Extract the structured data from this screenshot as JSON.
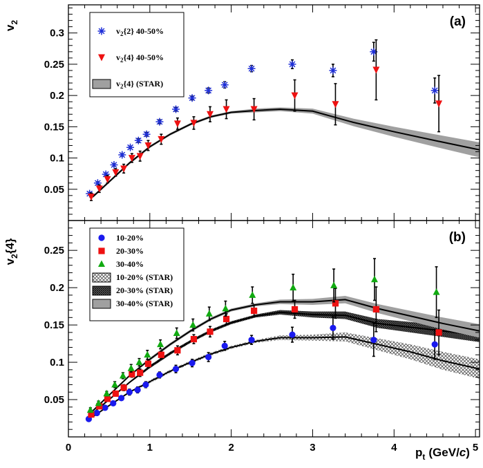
{
  "figure": {
    "xlabel": "p",
    "xlabel_sub": "t",
    "xlabel_unit": "(GeV/",
    "xlabel_unit_italic": "c",
    "xlabel_unit_close": ")"
  },
  "chart_data": [
    {
      "type": "scatter",
      "panel_label": "(a)",
      "ylabel": "v",
      "ylabel_sub": "2",
      "xlim": [
        0,
        5.05
      ],
      "ylim": [
        0.0,
        0.345
      ],
      "xticks": [
        "0",
        "1",
        "2",
        "3",
        "4",
        "5"
      ],
      "yticks": [
        "0.05",
        "0.1",
        "0.15",
        "0.2",
        "0.25",
        "0.3"
      ],
      "series": [
        {
          "name": "v2{2} 40-50%",
          "legend_main": "v",
          "legend_sub": "2",
          "legend_rest": "{2}  40-50%",
          "marker": "star",
          "color": "#1f2fd8",
          "points": [
            {
              "x": 0.26,
              "y": 0.043,
              "err": 0.002
            },
            {
              "x": 0.36,
              "y": 0.06,
              "err": 0.002
            },
            {
              "x": 0.46,
              "y": 0.074,
              "err": 0.002
            },
            {
              "x": 0.56,
              "y": 0.089,
              "err": 0.002
            },
            {
              "x": 0.66,
              "y": 0.105,
              "err": 0.002
            },
            {
              "x": 0.76,
              "y": 0.117,
              "err": 0.002
            },
            {
              "x": 0.86,
              "y": 0.128,
              "err": 0.003
            },
            {
              "x": 0.96,
              "y": 0.138,
              "err": 0.003
            },
            {
              "x": 1.12,
              "y": 0.158,
              "err": 0.003
            },
            {
              "x": 1.32,
              "y": 0.178,
              "err": 0.003
            },
            {
              "x": 1.52,
              "y": 0.196,
              "err": 0.003
            },
            {
              "x": 1.72,
              "y": 0.208,
              "err": 0.004
            },
            {
              "x": 1.92,
              "y": 0.217,
              "err": 0.005
            },
            {
              "x": 2.25,
              "y": 0.243,
              "err": 0.005
            },
            {
              "x": 2.75,
              "y": 0.25,
              "err": 0.007
            },
            {
              "x": 3.25,
              "y": 0.24,
              "err": 0.01
            },
            {
              "x": 3.75,
              "y": 0.27,
              "err": 0.015
            },
            {
              "x": 4.5,
              "y": 0.208,
              "err": 0.02
            }
          ]
        },
        {
          "name": "v2{4} 40-50%",
          "legend_main": "v",
          "legend_sub": "2",
          "legend_rest": "{4}  40-50%",
          "marker": "triangle-down",
          "color": "#ee1111",
          "points": [
            {
              "x": 0.28,
              "y": 0.038,
              "err": 0.006
            },
            {
              "x": 0.38,
              "y": 0.051,
              "err": 0.006
            },
            {
              "x": 0.48,
              "y": 0.066,
              "err": 0.006
            },
            {
              "x": 0.58,
              "y": 0.077,
              "err": 0.006
            },
            {
              "x": 0.68,
              "y": 0.083,
              "err": 0.007
            },
            {
              "x": 0.78,
              "y": 0.1,
              "err": 0.007
            },
            {
              "x": 0.88,
              "y": 0.103,
              "err": 0.008
            },
            {
              "x": 0.98,
              "y": 0.12,
              "err": 0.008
            },
            {
              "x": 1.14,
              "y": 0.13,
              "err": 0.008
            },
            {
              "x": 1.34,
              "y": 0.155,
              "err": 0.009
            },
            {
              "x": 1.54,
              "y": 0.156,
              "err": 0.01
            },
            {
              "x": 1.74,
              "y": 0.17,
              "err": 0.012
            },
            {
              "x": 1.94,
              "y": 0.178,
              "err": 0.015
            },
            {
              "x": 2.28,
              "y": 0.178,
              "err": 0.017
            },
            {
              "x": 2.78,
              "y": 0.2,
              "err": 0.025
            },
            {
              "x": 3.28,
              "y": 0.186,
              "err": 0.033
            },
            {
              "x": 3.78,
              "y": 0.241,
              "err": 0.048
            },
            {
              "x": 4.55,
              "y": 0.187,
              "err": 0.045
            }
          ]
        }
      ],
      "bands": [
        {
          "name": "v2{4} (STAR)",
          "legend_main": "v",
          "legend_sub": "2",
          "legend_rest": "{4} (STAR)",
          "pattern": "solid",
          "fill": "#a0a0a0",
          "points": [
            {
              "x": 0.3,
              "y": 0.038,
              "err": 0.002
            },
            {
              "x": 0.5,
              "y": 0.062,
              "err": 0.002
            },
            {
              "x": 0.75,
              "y": 0.092,
              "err": 0.002
            },
            {
              "x": 1.0,
              "y": 0.118,
              "err": 0.002
            },
            {
              "x": 1.25,
              "y": 0.138,
              "err": 0.002
            },
            {
              "x": 1.5,
              "y": 0.154,
              "err": 0.002
            },
            {
              "x": 1.75,
              "y": 0.166,
              "err": 0.002
            },
            {
              "x": 2.0,
              "y": 0.173,
              "err": 0.002
            },
            {
              "x": 2.3,
              "y": 0.176,
              "err": 0.003
            },
            {
              "x": 2.6,
              "y": 0.178,
              "err": 0.003
            },
            {
              "x": 3.0,
              "y": 0.175,
              "err": 0.004
            },
            {
              "x": 3.5,
              "y": 0.157,
              "err": 0.006
            },
            {
              "x": 4.0,
              "y": 0.142,
              "err": 0.008
            },
            {
              "x": 4.5,
              "y": 0.128,
              "err": 0.01
            },
            {
              "x": 5.05,
              "y": 0.113,
              "err": 0.012
            }
          ]
        }
      ]
    },
    {
      "type": "scatter",
      "panel_label": "(b)",
      "ylabel": "v",
      "ylabel_sub": "2",
      "ylabel_rest": "{4}",
      "xlim": [
        0,
        5.05
      ],
      "ylim": [
        0.0,
        0.29
      ],
      "xticks": [
        "0",
        "1",
        "2",
        "3",
        "4",
        "5"
      ],
      "yticks": [
        "0.05",
        "0.1",
        "0.15",
        "0.2",
        "0.25"
      ],
      "series": [
        {
          "name": "10-20%",
          "marker": "circle",
          "color": "#1a1aee",
          "points": [
            {
              "x": 0.25,
              "y": 0.024,
              "err": 0.003
            },
            {
              "x": 0.35,
              "y": 0.032,
              "err": 0.003
            },
            {
              "x": 0.45,
              "y": 0.039,
              "err": 0.003
            },
            {
              "x": 0.55,
              "y": 0.045,
              "err": 0.003
            },
            {
              "x": 0.65,
              "y": 0.052,
              "err": 0.003
            },
            {
              "x": 0.75,
              "y": 0.06,
              "err": 0.004
            },
            {
              "x": 0.85,
              "y": 0.063,
              "err": 0.004
            },
            {
              "x": 0.95,
              "y": 0.07,
              "err": 0.004
            },
            {
              "x": 1.12,
              "y": 0.083,
              "err": 0.004
            },
            {
              "x": 1.32,
              "y": 0.091,
              "err": 0.005
            },
            {
              "x": 1.52,
              "y": 0.099,
              "err": 0.005
            },
            {
              "x": 1.72,
              "y": 0.107,
              "err": 0.006
            },
            {
              "x": 1.92,
              "y": 0.122,
              "err": 0.006
            },
            {
              "x": 2.25,
              "y": 0.13,
              "err": 0.006
            },
            {
              "x": 2.75,
              "y": 0.137,
              "err": 0.01
            },
            {
              "x": 3.25,
              "y": 0.146,
              "err": 0.015
            },
            {
              "x": 3.75,
              "y": 0.13,
              "err": 0.022
            },
            {
              "x": 4.5,
              "y": 0.124,
              "err": 0.02
            }
          ]
        },
        {
          "name": "20-30%",
          "marker": "square",
          "color": "#ee1111",
          "points": [
            {
              "x": 0.28,
              "y": 0.03,
              "err": 0.003
            },
            {
              "x": 0.38,
              "y": 0.041,
              "err": 0.003
            },
            {
              "x": 0.48,
              "y": 0.051,
              "err": 0.003
            },
            {
              "x": 0.58,
              "y": 0.058,
              "err": 0.003
            },
            {
              "x": 0.68,
              "y": 0.066,
              "err": 0.004
            },
            {
              "x": 0.78,
              "y": 0.084,
              "err": 0.004
            },
            {
              "x": 0.88,
              "y": 0.086,
              "err": 0.005
            },
            {
              "x": 0.98,
              "y": 0.098,
              "err": 0.005
            },
            {
              "x": 1.14,
              "y": 0.11,
              "err": 0.005
            },
            {
              "x": 1.34,
              "y": 0.116,
              "err": 0.006
            },
            {
              "x": 1.54,
              "y": 0.131,
              "err": 0.006
            },
            {
              "x": 1.74,
              "y": 0.141,
              "err": 0.007
            },
            {
              "x": 1.94,
              "y": 0.158,
              "err": 0.007
            },
            {
              "x": 2.28,
              "y": 0.169,
              "err": 0.008
            },
            {
              "x": 2.78,
              "y": 0.171,
              "err": 0.012
            },
            {
              "x": 3.28,
              "y": 0.179,
              "err": 0.02
            },
            {
              "x": 3.78,
              "y": 0.171,
              "err": 0.03
            },
            {
              "x": 4.55,
              "y": 0.14,
              "err": 0.03
            }
          ]
        },
        {
          "name": "30-40%",
          "marker": "triangle-up",
          "color": "#11aa11",
          "points": [
            {
              "x": 0.27,
              "y": 0.036,
              "err": 0.003
            },
            {
              "x": 0.37,
              "y": 0.045,
              "err": 0.003
            },
            {
              "x": 0.47,
              "y": 0.058,
              "err": 0.003
            },
            {
              "x": 0.57,
              "y": 0.07,
              "err": 0.004
            },
            {
              "x": 0.67,
              "y": 0.082,
              "err": 0.004
            },
            {
              "x": 0.77,
              "y": 0.092,
              "err": 0.005
            },
            {
              "x": 0.87,
              "y": 0.1,
              "err": 0.005
            },
            {
              "x": 0.97,
              "y": 0.11,
              "err": 0.006
            },
            {
              "x": 1.13,
              "y": 0.124,
              "err": 0.006
            },
            {
              "x": 1.33,
              "y": 0.139,
              "err": 0.007
            },
            {
              "x": 1.53,
              "y": 0.15,
              "err": 0.008
            },
            {
              "x": 1.73,
              "y": 0.165,
              "err": 0.009
            },
            {
              "x": 1.93,
              "y": 0.172,
              "err": 0.01
            },
            {
              "x": 2.26,
              "y": 0.19,
              "err": 0.011
            },
            {
              "x": 2.76,
              "y": 0.2,
              "err": 0.018
            },
            {
              "x": 3.26,
              "y": 0.203,
              "err": 0.022
            },
            {
              "x": 3.76,
              "y": 0.211,
              "err": 0.028
            },
            {
              "x": 4.52,
              "y": 0.194,
              "err": 0.034
            }
          ]
        }
      ],
      "bands": [
        {
          "name": "10-20% (STAR)",
          "pattern": "crosshatch",
          "fill": "#666666",
          "points": [
            {
              "x": 0.3,
              "y": 0.027,
              "err": 0.001
            },
            {
              "x": 0.5,
              "y": 0.042,
              "err": 0.001
            },
            {
              "x": 0.75,
              "y": 0.06,
              "err": 0.001
            },
            {
              "x": 1.0,
              "y": 0.074,
              "err": 0.002
            },
            {
              "x": 1.25,
              "y": 0.088,
              "err": 0.002
            },
            {
              "x": 1.5,
              "y": 0.1,
              "err": 0.002
            },
            {
              "x": 1.75,
              "y": 0.111,
              "err": 0.002
            },
            {
              "x": 2.0,
              "y": 0.12,
              "err": 0.002
            },
            {
              "x": 2.3,
              "y": 0.128,
              "err": 0.002
            },
            {
              "x": 2.6,
              "y": 0.133,
              "err": 0.003
            },
            {
              "x": 3.0,
              "y": 0.133,
              "err": 0.004
            },
            {
              "x": 3.4,
              "y": 0.134,
              "err": 0.006
            },
            {
              "x": 3.8,
              "y": 0.124,
              "err": 0.008
            },
            {
              "x": 4.2,
              "y": 0.114,
              "err": 0.01
            },
            {
              "x": 4.6,
              "y": 0.102,
              "err": 0.012
            },
            {
              "x": 5.05,
              "y": 0.091,
              "err": 0.013
            }
          ]
        },
        {
          "name": "20-30% (STAR)",
          "pattern": "dense",
          "fill": "#333333",
          "points": [
            {
              "x": 0.3,
              "y": 0.032,
              "err": 0.001
            },
            {
              "x": 0.5,
              "y": 0.05,
              "err": 0.001
            },
            {
              "x": 0.75,
              "y": 0.073,
              "err": 0.001
            },
            {
              "x": 1.0,
              "y": 0.094,
              "err": 0.002
            },
            {
              "x": 1.25,
              "y": 0.112,
              "err": 0.002
            },
            {
              "x": 1.5,
              "y": 0.128,
              "err": 0.002
            },
            {
              "x": 1.75,
              "y": 0.142,
              "err": 0.002
            },
            {
              "x": 2.0,
              "y": 0.153,
              "err": 0.002
            },
            {
              "x": 2.3,
              "y": 0.162,
              "err": 0.002
            },
            {
              "x": 2.6,
              "y": 0.167,
              "err": 0.003
            },
            {
              "x": 3.0,
              "y": 0.164,
              "err": 0.004
            },
            {
              "x": 3.4,
              "y": 0.163,
              "err": 0.005
            },
            {
              "x": 3.8,
              "y": 0.152,
              "err": 0.006
            },
            {
              "x": 4.2,
              "y": 0.147,
              "err": 0.007
            },
            {
              "x": 4.6,
              "y": 0.142,
              "err": 0.008
            },
            {
              "x": 5.05,
              "y": 0.136,
              "err": 0.009
            }
          ]
        },
        {
          "name": "30-40% (STAR)",
          "pattern": "solid",
          "fill": "#a0a0a0",
          "points": [
            {
              "x": 0.3,
              "y": 0.035,
              "err": 0.001
            },
            {
              "x": 0.5,
              "y": 0.056,
              "err": 0.001
            },
            {
              "x": 0.75,
              "y": 0.082,
              "err": 0.001
            },
            {
              "x": 1.0,
              "y": 0.104,
              "err": 0.002
            },
            {
              "x": 1.25,
              "y": 0.124,
              "err": 0.002
            },
            {
              "x": 1.5,
              "y": 0.142,
              "err": 0.002
            },
            {
              "x": 1.75,
              "y": 0.158,
              "err": 0.002
            },
            {
              "x": 2.0,
              "y": 0.17,
              "err": 0.002
            },
            {
              "x": 2.3,
              "y": 0.177,
              "err": 0.002
            },
            {
              "x": 2.6,
              "y": 0.181,
              "err": 0.003
            },
            {
              "x": 3.0,
              "y": 0.181,
              "err": 0.004
            },
            {
              "x": 3.4,
              "y": 0.184,
              "err": 0.005
            },
            {
              "x": 3.8,
              "y": 0.172,
              "err": 0.006
            },
            {
              "x": 4.2,
              "y": 0.162,
              "err": 0.007
            },
            {
              "x": 4.6,
              "y": 0.152,
              "err": 0.008
            },
            {
              "x": 5.05,
              "y": 0.142,
              "err": 0.009
            }
          ]
        }
      ]
    }
  ]
}
